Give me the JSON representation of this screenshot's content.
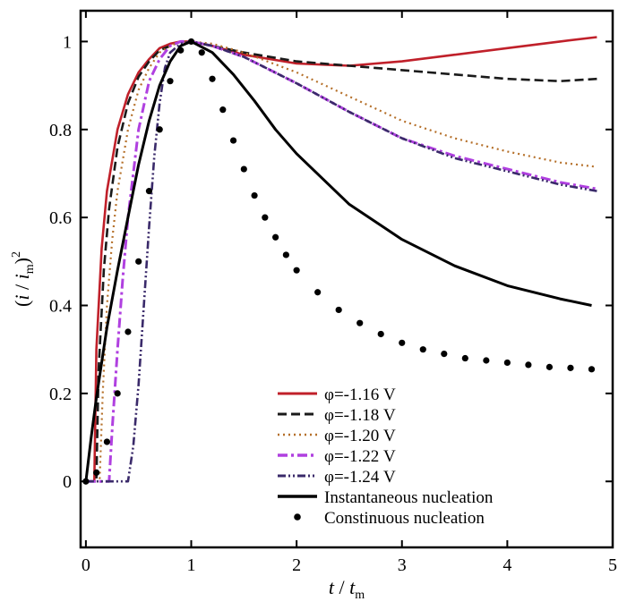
{
  "chart_data": {
    "type": "line",
    "title": "",
    "xlabel": "t / t_m",
    "ylabel": "(i / i_m)^2",
    "xlim": [
      -0.05,
      5.0
    ],
    "ylim": [
      -0.15,
      1.07
    ],
    "xticks": [
      0,
      1,
      2,
      3,
      4,
      5
    ],
    "xtick_labels": [
      "0",
      "1",
      "2",
      "3",
      "4",
      "5"
    ],
    "yticks": [
      0,
      0.2,
      0.4,
      0.6,
      0.8,
      1.0
    ],
    "ytick_labels": [
      "0",
      "0.2",
      "0.4",
      "0.6",
      "0.8",
      "1"
    ],
    "grid": false,
    "legend_position": "bottom-right",
    "series": [
      {
        "name": "φ=-1.16 V",
        "style": "solid",
        "color": "#c0202a",
        "x": [
          0.0,
          0.08,
          0.1,
          0.15,
          0.2,
          0.3,
          0.4,
          0.5,
          0.6,
          0.7,
          0.8,
          0.9,
          1.0,
          1.2,
          1.5,
          2.0,
          2.5,
          3.0,
          3.5,
          4.0,
          4.5,
          4.85
        ],
        "y": [
          0.0,
          0.0,
          0.3,
          0.53,
          0.66,
          0.8,
          0.88,
          0.93,
          0.96,
          0.985,
          0.995,
          1.0,
          1.0,
          0.99,
          0.97,
          0.95,
          0.945,
          0.955,
          0.97,
          0.985,
          1.0,
          1.01
        ]
      },
      {
        "name": "φ=-1.18 V",
        "style": "dashed",
        "color": "#1a1a1a",
        "x": [
          0.0,
          0.1,
          0.12,
          0.17,
          0.22,
          0.3,
          0.4,
          0.5,
          0.6,
          0.7,
          0.8,
          0.9,
          1.0,
          1.2,
          1.5,
          2.0,
          2.5,
          3.0,
          3.5,
          4.0,
          4.5,
          4.85
        ],
        "y": [
          0.0,
          0.0,
          0.25,
          0.48,
          0.62,
          0.76,
          0.86,
          0.92,
          0.955,
          0.98,
          0.99,
          1.0,
          1.0,
          0.99,
          0.975,
          0.955,
          0.945,
          0.935,
          0.925,
          0.915,
          0.91,
          0.915
        ]
      },
      {
        "name": "φ=-1.20 V",
        "style": "dotted",
        "color": "#b5702a",
        "x": [
          0.0,
          0.13,
          0.16,
          0.2,
          0.25,
          0.3,
          0.4,
          0.5,
          0.6,
          0.7,
          0.8,
          0.9,
          1.0,
          1.2,
          1.5,
          2.0,
          2.5,
          3.0,
          3.5,
          4.0,
          4.5,
          4.85
        ],
        "y": [
          0.0,
          0.0,
          0.2,
          0.4,
          0.55,
          0.66,
          0.8,
          0.89,
          0.94,
          0.975,
          0.99,
          1.0,
          1.0,
          0.995,
          0.975,
          0.93,
          0.875,
          0.82,
          0.78,
          0.75,
          0.725,
          0.715
        ]
      },
      {
        "name": "φ=-1.22 V",
        "style": "dashdot",
        "color": "#b040e0",
        "x": [
          0.0,
          0.22,
          0.25,
          0.3,
          0.35,
          0.4,
          0.45,
          0.5,
          0.6,
          0.7,
          0.8,
          0.9,
          1.0,
          1.2,
          1.5,
          2.0,
          2.5,
          3.0,
          3.5,
          4.0,
          4.5,
          4.85
        ],
        "y": [
          0.0,
          0.0,
          0.12,
          0.3,
          0.46,
          0.6,
          0.7,
          0.8,
          0.91,
          0.96,
          0.99,
          1.0,
          1.0,
          0.99,
          0.965,
          0.905,
          0.84,
          0.78,
          0.74,
          0.71,
          0.68,
          0.665
        ]
      },
      {
        "name": "φ=-1.24 V",
        "style": "dashdotdot",
        "color": "#3a2a6a",
        "x": [
          0.0,
          0.4,
          0.45,
          0.5,
          0.55,
          0.6,
          0.65,
          0.7,
          0.75,
          0.8,
          0.9,
          1.0,
          1.2,
          1.5,
          2.0,
          2.5,
          3.0,
          3.5,
          4.0,
          4.5,
          4.85
        ],
        "y": [
          0.0,
          0.0,
          0.08,
          0.22,
          0.4,
          0.58,
          0.74,
          0.86,
          0.94,
          0.975,
          0.995,
          1.0,
          0.99,
          0.965,
          0.905,
          0.84,
          0.78,
          0.735,
          0.705,
          0.675,
          0.66
        ]
      },
      {
        "name": "Instantaneous nucleation",
        "style": "solid-thick",
        "color": "#000000",
        "x": [
          0.0,
          0.05,
          0.1,
          0.15,
          0.2,
          0.3,
          0.4,
          0.5,
          0.6,
          0.7,
          0.8,
          0.9,
          1.0,
          1.2,
          1.4,
          1.6,
          1.8,
          2.0,
          2.5,
          3.0,
          3.5,
          4.0,
          4.5,
          4.8
        ],
        "y": [
          0.0,
          0.1,
          0.19,
          0.27,
          0.35,
          0.48,
          0.6,
          0.72,
          0.82,
          0.9,
          0.955,
          0.99,
          1.0,
          0.975,
          0.925,
          0.865,
          0.8,
          0.745,
          0.63,
          0.55,
          0.49,
          0.445,
          0.415,
          0.4
        ]
      },
      {
        "name": "Constinuous nucleation",
        "style": "markers",
        "color": "#000000",
        "x": [
          0.0,
          0.1,
          0.2,
          0.3,
          0.4,
          0.5,
          0.6,
          0.7,
          0.8,
          0.9,
          1.0,
          1.1,
          1.2,
          1.3,
          1.4,
          1.5,
          1.6,
          1.7,
          1.8,
          1.9,
          2.0,
          2.2,
          2.4,
          2.6,
          2.8,
          3.0,
          3.2,
          3.4,
          3.6,
          3.8,
          4.0,
          4.2,
          4.4,
          4.6,
          4.8
        ],
        "y": [
          0.0,
          0.02,
          0.09,
          0.2,
          0.34,
          0.5,
          0.66,
          0.8,
          0.91,
          0.98,
          1.0,
          0.975,
          0.915,
          0.845,
          0.775,
          0.71,
          0.65,
          0.6,
          0.555,
          0.515,
          0.48,
          0.43,
          0.39,
          0.36,
          0.335,
          0.315,
          0.3,
          0.29,
          0.28,
          0.275,
          0.27,
          0.265,
          0.26,
          0.258,
          0.255
        ]
      }
    ]
  }
}
